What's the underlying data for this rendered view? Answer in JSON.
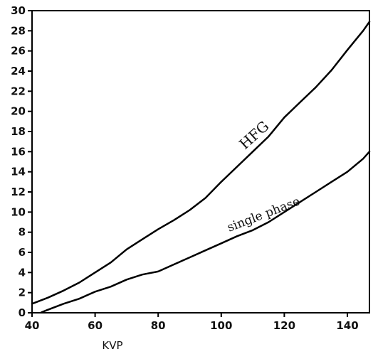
{
  "chart_data": {
    "type": "line",
    "title": "",
    "xlabel": "KVP",
    "ylabel": "",
    "xlim": [
      40,
      147
    ],
    "ylim": [
      0,
      30
    ],
    "x_ticks": [
      40,
      60,
      80,
      100,
      120,
      140
    ],
    "y_ticks": [
      0,
      2,
      4,
      6,
      8,
      10,
      12,
      14,
      16,
      18,
      20,
      22,
      24,
      26,
      28,
      30
    ],
    "grid": false,
    "legend": "none",
    "series": [
      {
        "name": "HFG",
        "color": "#000000",
        "points": [
          [
            40,
            0.9
          ],
          [
            45,
            1.5
          ],
          [
            50,
            2.2
          ],
          [
            55,
            3.0
          ],
          [
            60,
            4.0
          ],
          [
            65,
            5.0
          ],
          [
            70,
            6.3
          ],
          [
            75,
            7.3
          ],
          [
            80,
            8.3
          ],
          [
            85,
            9.2
          ],
          [
            90,
            10.2
          ],
          [
            95,
            11.4
          ],
          [
            100,
            13.0
          ],
          [
            105,
            14.5
          ],
          [
            110,
            16.0
          ],
          [
            115,
            17.5
          ],
          [
            120,
            19.4
          ],
          [
            125,
            20.9
          ],
          [
            130,
            22.4
          ],
          [
            135,
            24.1
          ],
          [
            140,
            26.1
          ],
          [
            145,
            28.0
          ],
          [
            147,
            28.9
          ]
        ]
      },
      {
        "name": "single phase",
        "color": "#000000",
        "points": [
          [
            43,
            0.05
          ],
          [
            45,
            0.3
          ],
          [
            50,
            0.9
          ],
          [
            55,
            1.4
          ],
          [
            60,
            2.1
          ],
          [
            65,
            2.6
          ],
          [
            70,
            3.3
          ],
          [
            75,
            3.8
          ],
          [
            80,
            4.1
          ],
          [
            85,
            4.8
          ],
          [
            90,
            5.5
          ],
          [
            95,
            6.2
          ],
          [
            100,
            6.9
          ],
          [
            105,
            7.6
          ],
          [
            110,
            8.2
          ],
          [
            115,
            9.0
          ],
          [
            120,
            10.0
          ],
          [
            125,
            11.0
          ],
          [
            130,
            12.0
          ],
          [
            135,
            13.0
          ],
          [
            140,
            14.0
          ],
          [
            145,
            15.3
          ],
          [
            147,
            16.0
          ]
        ]
      }
    ]
  }
}
